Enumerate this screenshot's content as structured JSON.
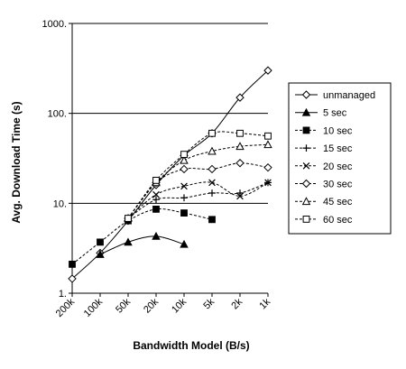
{
  "chart_data": {
    "type": "line",
    "xlabel": "Bandwidth Model (B/s)",
    "ylabel": "Avg. Download Time (s)",
    "yscale": "log",
    "ylim": [
      1,
      1000
    ],
    "ytick_labels": [
      "1.",
      "10.",
      "100.",
      "1000."
    ],
    "grid": "horizontal major lines",
    "legend_position": "right",
    "categories": [
      "200k",
      "100k",
      "50k",
      "20k",
      "10k",
      "5k",
      "2k",
      "1k"
    ],
    "series": [
      {
        "name": "unmanaged",
        "marker": "diamond-open",
        "dash": "solid",
        "values": [
          1.45,
          2.8,
          6.4,
          16,
          34,
          60,
          150,
          300
        ]
      },
      {
        "name": "5 sec",
        "marker": "triangle-filled",
        "dash": "solid",
        "values": [
          null,
          2.7,
          3.7,
          4.3,
          3.5,
          null,
          null,
          null
        ]
      },
      {
        "name": "10 sec",
        "marker": "square-filled",
        "dash": "dashed",
        "values": [
          2.1,
          3.7,
          6.4,
          8.6,
          7.8,
          6.6,
          null,
          null
        ]
      },
      {
        "name": "15 sec",
        "marker": "plus",
        "dash": "dashed",
        "values": [
          null,
          null,
          6.8,
          11,
          11.5,
          13,
          13,
          17
        ]
      },
      {
        "name": "20 sec",
        "marker": "x",
        "dash": "dashed",
        "values": [
          null,
          null,
          6.8,
          12.5,
          15.5,
          17,
          12,
          17
        ]
      },
      {
        "name": "30 sec",
        "marker": "diamond-open",
        "dash": "dashed",
        "values": [
          null,
          null,
          6.8,
          17,
          24,
          24,
          28,
          25
        ]
      },
      {
        "name": "45 sec",
        "marker": "triangle-open",
        "dash": "dashed",
        "values": [
          null,
          null,
          6.8,
          17,
          30,
          38,
          43,
          45
        ]
      },
      {
        "name": "60 sec",
        "marker": "square-open",
        "dash": "dashed",
        "values": [
          null,
          null,
          6.8,
          18,
          35,
          60,
          60,
          56
        ]
      }
    ]
  }
}
